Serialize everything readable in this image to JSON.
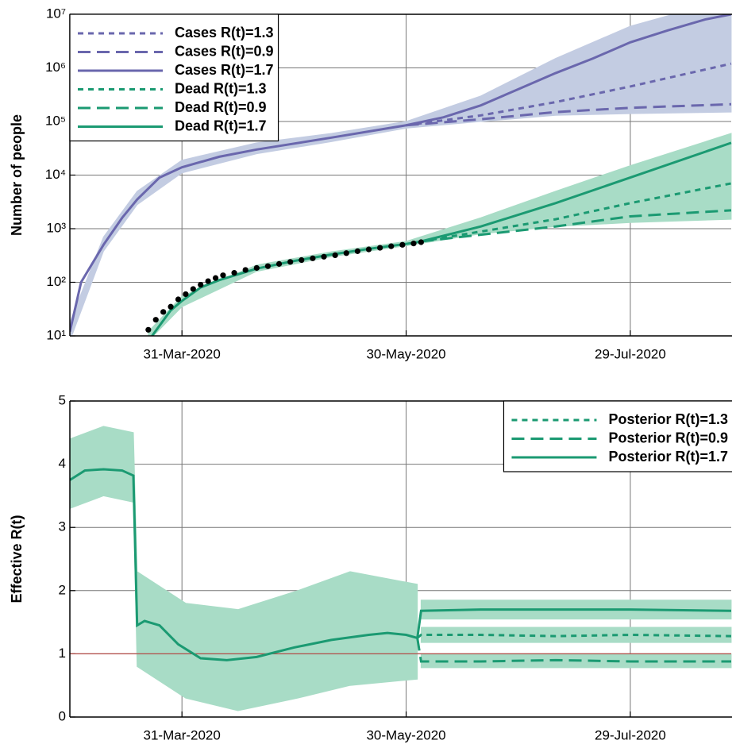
{
  "chart_data": [
    {
      "type": "line",
      "ylabel": "Number of people",
      "log_y": true,
      "grid": true,
      "legend": "upper left",
      "xlim": [
        "01-Mar-2020",
        "25-Aug-2020"
      ],
      "xticks": [
        "31-Mar-2020",
        "30-May-2020",
        "29-Jul-2020"
      ],
      "ylim": [
        10,
        10000000
      ],
      "yticks": [
        {
          "value": 10,
          "label": "10¹"
        },
        {
          "value": 100,
          "label": "10²"
        },
        {
          "value": 1000,
          "label": "10³"
        },
        {
          "value": 10000,
          "label": "10⁴"
        },
        {
          "value": 100000,
          "label": "10⁵"
        },
        {
          "value": 1000000,
          "label": "10⁶"
        },
        {
          "value": 10000000,
          "label": "10⁷"
        }
      ],
      "bands": [
        {
          "color": "#c3cce2",
          "x": [
            "01-Mar-2020",
            "10-Mar-2020",
            "19-Mar-2020",
            "31-Mar-2020",
            "20-Apr-2020",
            "10-May-2020",
            "30-May-2020",
            "19-Jun-2020",
            "09-Jul-2020",
            "29-Jul-2020",
            "25-Aug-2020"
          ],
          "lower": [
            8,
            380,
            2800,
            11000,
            25000,
            42000,
            75000,
            100000,
            130000,
            140000,
            150000
          ],
          "upper": [
            18,
            700,
            5000,
            19000,
            40000,
            60000,
            100000,
            300000,
            1500000,
            6000000,
            20000000
          ]
        },
        {
          "color": "#a8dcc6",
          "x": [
            "22-Mar-2020",
            "31-Mar-2020",
            "20-Apr-2020",
            "10-May-2020",
            "30-May-2020",
            "19-Jun-2020",
            "09-Jul-2020",
            "29-Jul-2020",
            "25-Aug-2020"
          ],
          "lower": [
            8,
            35,
            160,
            300,
            480,
            800,
            1100,
            1300,
            1500
          ],
          "upper": [
            12,
            55,
            210,
            370,
            580,
            1600,
            5000,
            15000,
            60000
          ]
        }
      ],
      "series": [
        {
          "name": "Cases R(t)=1.3",
          "color": "#6a67ad",
          "linestyle": "dotted",
          "x": [
            "30-May-2020",
            "19-Jun-2020",
            "09-Jul-2020",
            "29-Jul-2020",
            "25-Aug-2020"
          ],
          "values": [
            85000,
            130000,
            230000,
            450000,
            1200000
          ]
        },
        {
          "name": "Cases R(t)=0.9",
          "color": "#6a67ad",
          "linestyle": "dashed",
          "x": [
            "30-May-2020",
            "19-Jun-2020",
            "09-Jul-2020",
            "29-Jul-2020",
            "25-Aug-2020"
          ],
          "values": [
            85000,
            110000,
            150000,
            180000,
            210000
          ]
        },
        {
          "name": "Cases R(t)=1.7",
          "color": "#6a67ad",
          "linestyle": "solid",
          "x": [
            "01-Mar-2020",
            "04-Mar-2020",
            "10-Mar-2020",
            "15-Mar-2020",
            "19-Mar-2020",
            "25-Mar-2020",
            "31-Mar-2020",
            "10-Apr-2020",
            "20-Apr-2020",
            "10-May-2020",
            "30-May-2020",
            "09-Jun-2020",
            "19-Jun-2020",
            "29-Jun-2020",
            "09-Jul-2020",
            "19-Jul-2020",
            "29-Jul-2020",
            "08-Aug-2020",
            "18-Aug-2020",
            "25-Aug-2020"
          ],
          "values": [
            12,
            100,
            500,
            1600,
            3500,
            9000,
            14000,
            22000,
            30000,
            50000,
            85000,
            120000,
            200000,
            400000,
            800000,
            1500000,
            3000000,
            5000000,
            8000000,
            10000000
          ]
        },
        {
          "name": "Dead R(t)=1.3",
          "color": "#1b9a72",
          "linestyle": "dotted",
          "x": [
            "03-Jun-2020",
            "09-Jul-2020",
            "29-Jul-2020",
            "25-Aug-2020"
          ],
          "values": [
            580,
            1500,
            3000,
            7000
          ]
        },
        {
          "name": "Dead R(t)=0.9",
          "color": "#1b9a72",
          "linestyle": "dashed",
          "x": [
            "03-Jun-2020",
            "09-Jul-2020",
            "29-Jul-2020",
            "25-Aug-2020"
          ],
          "values": [
            580,
            1100,
            1700,
            2200
          ]
        },
        {
          "name": "Dead R(t)=1.7",
          "color": "#1b9a72",
          "linestyle": "solid",
          "x": [
            "23-Mar-2020",
            "28-Mar-2020",
            "31-Mar-2020",
            "05-Apr-2020",
            "10-Apr-2020",
            "20-Apr-2020",
            "30-Apr-2020",
            "10-May-2020",
            "20-May-2020",
            "30-May-2020",
            "03-Jun-2020",
            "19-Jun-2020",
            "09-Jul-2020",
            "29-Jul-2020",
            "25-Aug-2020"
          ],
          "values": [
            10,
            30,
            45,
            80,
            110,
            180,
            250,
            330,
            420,
            520,
            580,
            1100,
            3000,
            9000,
            40000
          ]
        }
      ],
      "observed": {
        "color": "#000000",
        "x": [
          "22-Mar-2020",
          "24-Mar-2020",
          "26-Mar-2020",
          "28-Mar-2020",
          "30-Mar-2020",
          "01-Apr-2020",
          "03-Apr-2020",
          "05-Apr-2020",
          "07-Apr-2020",
          "09-Apr-2020",
          "11-Apr-2020",
          "14-Apr-2020",
          "17-Apr-2020",
          "20-Apr-2020",
          "23-Apr-2020",
          "26-Apr-2020",
          "29-Apr-2020",
          "02-May-2020",
          "05-May-2020",
          "08-May-2020",
          "11-May-2020",
          "14-May-2020",
          "17-May-2020",
          "20-May-2020",
          "23-May-2020",
          "26-May-2020",
          "29-May-2020",
          "01-Jun-2020",
          "03-Jun-2020"
        ],
        "values": [
          13,
          20,
          28,
          35,
          48,
          60,
          75,
          90,
          105,
          120,
          135,
          150,
          170,
          185,
          200,
          220,
          240,
          260,
          280,
          300,
          320,
          350,
          380,
          410,
          440,
          470,
          500,
          530,
          560
        ]
      }
    },
    {
      "type": "line",
      "ylabel": "Effective R(t)",
      "log_y": false,
      "grid": true,
      "legend": "upper right",
      "xlim": [
        "01-Mar-2020",
        "25-Aug-2020"
      ],
      "xticks": [
        "31-Mar-2020",
        "30-May-2020",
        "29-Jul-2020"
      ],
      "ylim": [
        0,
        5
      ],
      "yticks": [
        0,
        1,
        2,
        3,
        4,
        5
      ],
      "reference_line": {
        "value": 1,
        "color": "#b24a45"
      },
      "bands": [
        {
          "color": "#a8dcc6",
          "x": [
            "01-Mar-2020",
            "10-Mar-2020",
            "18-Mar-2020"
          ],
          "lower": [
            3.3,
            3.5,
            3.4
          ],
          "upper": [
            4.4,
            4.6,
            4.5
          ]
        },
        {
          "color": "#a8dcc6",
          "x": [
            "18-Mar-2020",
            "19-Mar-2020",
            "01-Apr-2020",
            "15-Apr-2020",
            "01-May-2020",
            "15-May-2020",
            "02-Jun-2020"
          ],
          "lower": [
            3.4,
            0.8,
            0.3,
            0.1,
            0.3,
            0.5,
            0.6
          ],
          "upper": [
            4.5,
            2.3,
            1.8,
            1.7,
            2.0,
            2.3,
            2.1
          ]
        },
        {
          "color": "#a8dcc6",
          "x": [
            "03-Jun-2020",
            "25-Aug-2020"
          ],
          "lower": [
            1.55,
            1.55
          ],
          "upper": [
            1.85,
            1.85
          ]
        },
        {
          "color": "#a8dcc6",
          "x": [
            "03-Jun-2020",
            "25-Aug-2020"
          ],
          "lower": [
            1.18,
            1.18
          ],
          "upper": [
            1.42,
            1.42
          ]
        },
        {
          "color": "#a8dcc6",
          "x": [
            "03-Jun-2020",
            "25-Aug-2020"
          ],
          "lower": [
            0.78,
            0.78
          ],
          "upper": [
            1.0,
            1.0
          ]
        }
      ],
      "series": [
        {
          "name": "Posterior R(t)=1.3",
          "color": "#1b9a72",
          "linestyle": "dotted",
          "x": [
            "02-Jun-2020",
            "03-Jun-2020",
            "19-Jun-2020",
            "09-Jul-2020",
            "29-Jul-2020",
            "25-Aug-2020"
          ],
          "values": [
            1.25,
            1.3,
            1.3,
            1.28,
            1.3,
            1.28
          ]
        },
        {
          "name": "Posterior R(t)=0.9",
          "color": "#1b9a72",
          "linestyle": "dashed",
          "x": [
            "02-Jun-2020",
            "03-Jun-2020",
            "19-Jun-2020",
            "09-Jul-2020",
            "29-Jul-2020",
            "25-Aug-2020"
          ],
          "values": [
            1.25,
            0.88,
            0.88,
            0.9,
            0.88,
            0.88
          ]
        },
        {
          "name": "Posterior R(t)=1.7",
          "color": "#1b9a72",
          "linestyle": "solid",
          "x": [
            "01-Mar-2020",
            "05-Mar-2020",
            "10-Mar-2020",
            "15-Mar-2020",
            "18-Mar-2020",
            "19-Mar-2020",
            "21-Mar-2020",
            "25-Mar-2020",
            "30-Mar-2020",
            "05-Apr-2020",
            "12-Apr-2020",
            "20-Apr-2020",
            "30-Apr-2020",
            "10-May-2020",
            "20-May-2020",
            "25-May-2020",
            "30-May-2020",
            "02-Jun-2020",
            "03-Jun-2020",
            "19-Jun-2020",
            "09-Jul-2020",
            "29-Jul-2020",
            "25-Aug-2020"
          ],
          "values": [
            3.75,
            3.9,
            3.92,
            3.9,
            3.82,
            1.45,
            1.52,
            1.45,
            1.15,
            0.93,
            0.9,
            0.95,
            1.1,
            1.22,
            1.3,
            1.33,
            1.3,
            1.25,
            1.68,
            1.7,
            1.7,
            1.7,
            1.68
          ]
        }
      ]
    }
  ]
}
